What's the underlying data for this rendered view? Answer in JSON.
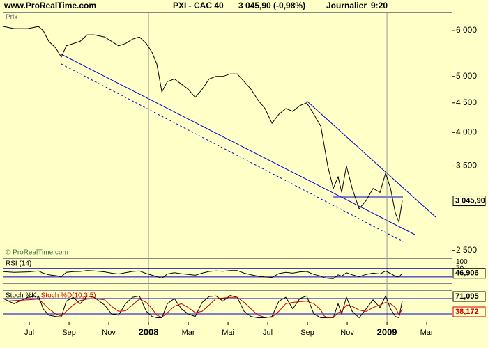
{
  "header": {
    "site": "www.ProRealTime.com",
    "instrument": "PXI - CAC 40",
    "quote": "3 045,90 (-0,98%)",
    "period": "Journalier",
    "time": "9:20",
    "panel_label": "Prix",
    "copyright": "© ProRealTime.com"
  },
  "chart_data": [
    {
      "type": "line",
      "log_scale": true,
      "color": "#000000",
      "x": [
        4.7,
        5.23,
        5.93,
        6.46,
        6.7,
        6.98,
        7.33,
        7.61,
        7.86,
        8.21,
        8.56,
        8.91,
        9.26,
        9.79,
        10.14,
        10.49,
        10.84,
        11.19,
        11.54,
        11.89,
        12.18,
        12.42,
        12.67,
        12.95,
        13.3,
        13.65,
        14.0,
        14.35,
        14.7,
        15.05,
        15.4,
        15.75,
        16.11,
        16.46,
        16.81,
        17.16,
        17.51,
        17.86,
        18.21,
        18.56,
        18.91,
        19.26,
        19.61,
        19.96,
        20.32,
        20.67,
        20.84,
        21.02,
        21.3,
        21.54,
        21.72,
        21.96,
        22.25,
        22.6,
        22.95,
        23.3,
        23.65,
        23.93,
        24.18,
        24.42,
        24.6,
        24.77
      ],
      "values": [
        6100,
        6050,
        6050,
        6100,
        6000,
        5750,
        5600,
        5400,
        5650,
        5700,
        5750,
        5900,
        5900,
        5850,
        5750,
        5650,
        5700,
        5800,
        5850,
        5700,
        5500,
        5250,
        4700,
        4900,
        4950,
        4850,
        4750,
        4600,
        4750,
        4950,
        5000,
        5000,
        5050,
        5050,
        4900,
        4750,
        4550,
        4400,
        4150,
        4300,
        4400,
        4350,
        4450,
        4500,
        4300,
        4100,
        3800,
        3500,
        3200,
        3350,
        3150,
        3500,
        3200,
        2950,
        3050,
        3200,
        3150,
        3400,
        3200,
        2900,
        2800,
        3045.9
      ],
      "value_labels": [
        null,
        null,
        null,
        null,
        null,
        null,
        null,
        null,
        null,
        null,
        null,
        null,
        null,
        null,
        null,
        null,
        null,
        null,
        null,
        null,
        null,
        null,
        null,
        null,
        null,
        null,
        null,
        null,
        null,
        null,
        null,
        null,
        null,
        null,
        null,
        null,
        null,
        null,
        null,
        null,
        null,
        null,
        null,
        null,
        null,
        null,
        null,
        null,
        null,
        null,
        null,
        null,
        null,
        null,
        null,
        null,
        null,
        null,
        null,
        null,
        null,
        "3 045,90"
      ],
      "xlim": [
        4.7,
        27.26
      ],
      "xticks": [
        {
          "value": 6,
          "label": "Jul"
        },
        {
          "value": 8,
          "label": "Sep"
        },
        {
          "value": 10,
          "label": "Nov"
        },
        {
          "value": 12,
          "label": "2008"
        },
        {
          "value": 14,
          "label": "Mar"
        },
        {
          "value": 16,
          "label": "Mai"
        },
        {
          "value": 18,
          "label": "Jul"
        },
        {
          "value": 20,
          "label": "Sep"
        },
        {
          "value": 22,
          "label": "Nov"
        },
        {
          "value": 24,
          "label": "2009"
        },
        {
          "value": 26,
          "label": "Mar"
        }
      ],
      "ylim": [
        2430,
        6450
      ],
      "yticks": [
        {
          "value": 2500,
          "label": "2 500"
        },
        {
          "value": 3500,
          "label": "3 500"
        },
        {
          "value": 4000,
          "label": "4 000"
        },
        {
          "value": 4500,
          "label": "4 500"
        },
        {
          "value": 5000,
          "label": "5 000"
        },
        {
          "value": 6000,
          "label": "6 000"
        }
      ]
    },
    {
      "type": "line",
      "title": "RSI (14)",
      "color": "#000000",
      "levels": [
        70,
        30
      ],
      "values": [
        55,
        52,
        54,
        58,
        48,
        40,
        36,
        32,
        52,
        55,
        56,
        60,
        58,
        54,
        48,
        44,
        50,
        56,
        58,
        46,
        38,
        32,
        24,
        44,
        50,
        45,
        42,
        38,
        48,
        56,
        58,
        57,
        60,
        60,
        48,
        40,
        34,
        30,
        28,
        46,
        52,
        48,
        54,
        56,
        42,
        34,
        26,
        24,
        22,
        40,
        34,
        50,
        40,
        32,
        42,
        48,
        44,
        58,
        46,
        34,
        30,
        46.906
      ],
      "value_labels": [
        null,
        null,
        null,
        null,
        null,
        null,
        null,
        null,
        null,
        null,
        null,
        null,
        null,
        null,
        null,
        null,
        null,
        null,
        null,
        null,
        null,
        null,
        null,
        null,
        null,
        null,
        null,
        null,
        null,
        null,
        null,
        null,
        null,
        null,
        null,
        null,
        null,
        null,
        null,
        null,
        null,
        null,
        null,
        null,
        null,
        null,
        null,
        null,
        null,
        null,
        null,
        null,
        null,
        null,
        null,
        null,
        null,
        null,
        null,
        null,
        null,
        "46,906"
      ],
      "ylim": [
        0,
        115
      ],
      "yticks": [
        100,
        70
      ]
    },
    {
      "type": "line",
      "levels": [
        80,
        20
      ],
      "ylim": [
        -10,
        110
      ],
      "series": [
        {
          "name": "Stoch %K,",
          "color": "#000000",
          "values": [
            80,
            60,
            85,
            90,
            40,
            15,
            10,
            8,
            70,
            85,
            60,
            90,
            85,
            55,
            20,
            15,
            60,
            85,
            90,
            30,
            10,
            5,
            5,
            60,
            80,
            40,
            20,
            10,
            65,
            88,
            90,
            70,
            92,
            85,
            30,
            10,
            5,
            5,
            10,
            70,
            85,
            40,
            80,
            90,
            20,
            5,
            5,
            5,
            5,
            60,
            20,
            85,
            30,
            5,
            40,
            75,
            45,
            90,
            40,
            10,
            5,
            71.095
          ],
          "value_labels": [
            null,
            null,
            null,
            null,
            null,
            null,
            null,
            null,
            null,
            null,
            null,
            null,
            null,
            null,
            null,
            null,
            null,
            null,
            null,
            null,
            null,
            null,
            null,
            null,
            null,
            null,
            null,
            null,
            null,
            null,
            null,
            null,
            null,
            null,
            null,
            null,
            null,
            null,
            null,
            null,
            null,
            null,
            null,
            null,
            null,
            null,
            null,
            null,
            null,
            null,
            null,
            null,
            null,
            null,
            null,
            null,
            null,
            null,
            null,
            null,
            null,
            "71,095"
          ]
        },
        {
          "name": "Stoch %D(10,3,5)",
          "color": "#cc0000",
          "values": [
            70,
            72,
            75,
            78,
            62,
            40,
            20,
            11,
            30,
            55,
            72,
            78,
            80,
            75,
            50,
            30,
            32,
            55,
            78,
            65,
            40,
            15,
            7,
            25,
            50,
            60,
            45,
            25,
            30,
            55,
            80,
            82,
            85,
            85,
            65,
            40,
            15,
            7,
            7,
            30,
            60,
            65,
            68,
            70,
            60,
            35,
            12,
            5,
            5,
            25,
            30,
            55,
            50,
            35,
            30,
            45,
            55,
            65,
            60,
            45,
            18,
            38.172
          ],
          "value_labels": [
            null,
            null,
            null,
            null,
            null,
            null,
            null,
            null,
            null,
            null,
            null,
            null,
            null,
            null,
            null,
            null,
            null,
            null,
            null,
            null,
            null,
            null,
            null,
            null,
            null,
            null,
            null,
            null,
            null,
            null,
            null,
            null,
            null,
            null,
            null,
            null,
            null,
            null,
            null,
            null,
            null,
            null,
            null,
            null,
            null,
            null,
            null,
            null,
            null,
            null,
            null,
            null,
            null,
            null,
            null,
            null,
            null,
            null,
            null,
            null,
            null,
            "38,172"
          ]
        }
      ]
    }
  ]
}
